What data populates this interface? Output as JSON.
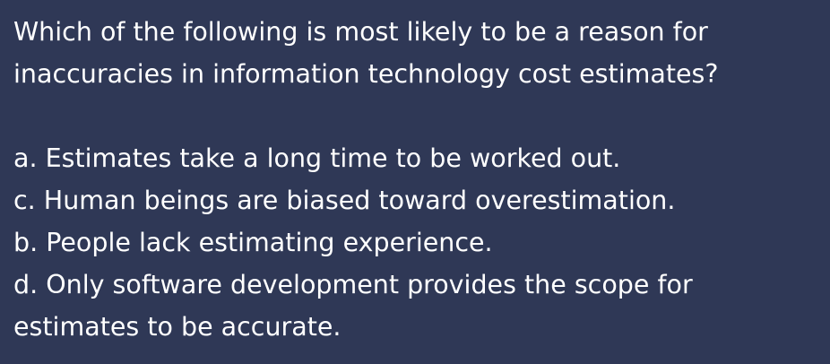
{
  "question": {
    "line1": "Which of the following is most likely to be a reason for",
    "line2": "inaccuracies in information technology cost estimates?"
  },
  "options": [
    {
      "text": "a. Estimates take a long time to be worked out."
    },
    {
      "text": "c. Human beings are biased toward overestimation."
    },
    {
      "text": "b. People lack estimating experience."
    },
    {
      "text": "d. Only software development provides the scope for",
      "text2": "estimates to be accurate."
    }
  ]
}
